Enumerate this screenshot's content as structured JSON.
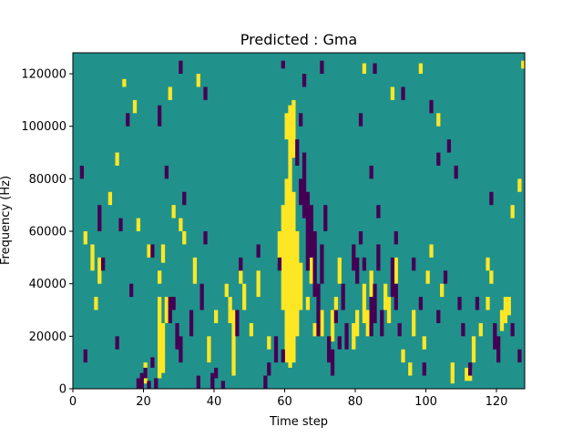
{
  "chart_data": {
    "type": "heatmap",
    "title": "Predicted : Gma",
    "xlabel": "Time step",
    "ylabel": "Frequency (Hz)",
    "xlim": [
      0,
      128
    ],
    "ylim": [
      0,
      128000
    ],
    "x_ticks": [
      0,
      20,
      40,
      60,
      80,
      100,
      120
    ],
    "y_ticks": [
      0,
      20000,
      40000,
      60000,
      80000,
      100000,
      120000
    ],
    "x_tick_labels": [
      "0",
      "20",
      "40",
      "60",
      "80",
      "100",
      "120"
    ],
    "y_tick_labels": [
      "0",
      "20000",
      "40000",
      "60000",
      "80000",
      "100000",
      "120000"
    ],
    "n_rows": 128,
    "n_cols": 128,
    "colormap": "viridis",
    "colors": {
      "low": "#440154",
      "mid": "#21918c",
      "high": "#fde725"
    },
    "background_value": 0,
    "value_levels": [
      -1,
      0,
      1
    ],
    "cells_high": [
      [
        60,
        10,
        80
      ],
      [
        61,
        8,
        85
      ],
      [
        62,
        10,
        75
      ],
      [
        59,
        30,
        70
      ],
      [
        63,
        20,
        60
      ],
      [
        58,
        48,
        60
      ],
      [
        64,
        30,
        48
      ],
      [
        61,
        85,
        108
      ],
      [
        62,
        88,
        110
      ],
      [
        60,
        95,
        105
      ],
      [
        24,
        4,
        35
      ],
      [
        25,
        6,
        25
      ],
      [
        26,
        25,
        35
      ],
      [
        24,
        40,
        45
      ],
      [
        25,
        48,
        55
      ],
      [
        20,
        2,
        10
      ],
      [
        45,
        5,
        30
      ],
      [
        44,
        25,
        35
      ],
      [
        43,
        35,
        40
      ],
      [
        73,
        18,
        30
      ],
      [
        74,
        25,
        35
      ],
      [
        70,
        20,
        30
      ],
      [
        75,
        40,
        50
      ],
      [
        79,
        15,
        25
      ],
      [
        80,
        20,
        30
      ],
      [
        82,
        25,
        40
      ],
      [
        83,
        20,
        30
      ],
      [
        84,
        35,
        45
      ],
      [
        107,
        2,
        10
      ],
      [
        111,
        3,
        8
      ],
      [
        112,
        3,
        8
      ],
      [
        122,
        25,
        35
      ],
      [
        123,
        28,
        35
      ],
      [
        121,
        22,
        30
      ],
      [
        7,
        40,
        50
      ],
      [
        5,
        45,
        55
      ],
      [
        6,
        30,
        35
      ],
      [
        3,
        55,
        60
      ],
      [
        48,
        30,
        40
      ],
      [
        47,
        40,
        45
      ],
      [
        52,
        35,
        45
      ],
      [
        30,
        60,
        65
      ],
      [
        31,
        55,
        60
      ],
      [
        34,
        40,
        50
      ],
      [
        88,
        30,
        40
      ],
      [
        89,
        25,
        35
      ],
      [
        91,
        40,
        50
      ],
      [
        96,
        20,
        30
      ],
      [
        100,
        40,
        45
      ],
      [
        101,
        50,
        55
      ],
      [
        104,
        35,
        40
      ],
      [
        117,
        30,
        35
      ],
      [
        118,
        40,
        45
      ],
      [
        14,
        115,
        118
      ],
      [
        17,
        105,
        110
      ],
      [
        27,
        110,
        115
      ],
      [
        35,
        115,
        120
      ],
      [
        82,
        120,
        124
      ],
      [
        90,
        110,
        115
      ],
      [
        98,
        120,
        124
      ],
      [
        103,
        100,
        105
      ],
      [
        117,
        45,
        50
      ],
      [
        124,
        65,
        70
      ],
      [
        126,
        75,
        80
      ],
      [
        127,
        122,
        125
      ],
      [
        10,
        70,
        75
      ],
      [
        12,
        85,
        90
      ],
      [
        18,
        60,
        65
      ],
      [
        21,
        50,
        55
      ],
      [
        28,
        65,
        70
      ],
      [
        38,
        10,
        20
      ],
      [
        40,
        25,
        30
      ],
      [
        50,
        20,
        25
      ],
      [
        55,
        15,
        20
      ],
      [
        66,
        30,
        35
      ],
      [
        67,
        40,
        50
      ],
      [
        68,
        20,
        25
      ],
      [
        93,
        10,
        15
      ],
      [
        95,
        5,
        10
      ],
      [
        99,
        15,
        20
      ],
      [
        113,
        10,
        20
      ],
      [
        115,
        20,
        25
      ]
    ],
    "cells_low": [
      [
        18,
        0,
        4
      ],
      [
        19,
        0,
        6
      ],
      [
        20,
        4,
        8
      ],
      [
        21,
        0,
        3
      ],
      [
        22,
        8,
        12
      ],
      [
        23,
        0,
        4
      ],
      [
        27,
        25,
        35
      ],
      [
        28,
        30,
        35
      ],
      [
        29,
        15,
        25
      ],
      [
        30,
        10,
        20
      ],
      [
        39,
        0,
        6
      ],
      [
        40,
        4,
        8
      ],
      [
        42,
        0,
        3
      ],
      [
        66,
        45,
        75
      ],
      [
        67,
        50,
        70
      ],
      [
        68,
        35,
        60
      ],
      [
        65,
        65,
        90
      ],
      [
        69,
        20,
        40
      ],
      [
        70,
        40,
        55
      ],
      [
        71,
        60,
        70
      ],
      [
        72,
        10,
        20
      ],
      [
        73,
        5,
        15
      ],
      [
        74,
        25,
        30
      ],
      [
        75,
        15,
        20
      ],
      [
        76,
        30,
        40
      ],
      [
        77,
        15,
        25
      ],
      [
        79,
        45,
        55
      ],
      [
        80,
        40,
        50
      ],
      [
        81,
        55,
        60
      ],
      [
        82,
        45,
        50
      ],
      [
        84,
        20,
        35
      ],
      [
        85,
        25,
        40
      ],
      [
        86,
        45,
        55
      ],
      [
        87,
        20,
        30
      ],
      [
        90,
        35,
        50
      ],
      [
        91,
        30,
        40
      ],
      [
        92,
        20,
        25
      ],
      [
        64,
        70,
        80
      ],
      [
        63,
        85,
        95
      ],
      [
        64,
        100,
        105
      ],
      [
        65,
        115,
        120
      ],
      [
        54,
        0,
        5
      ],
      [
        55,
        5,
        10
      ],
      [
        57,
        10,
        20
      ],
      [
        98,
        30,
        35
      ],
      [
        99,
        5,
        10
      ],
      [
        103,
        25,
        30
      ],
      [
        105,
        40,
        45
      ],
      [
        109,
        30,
        35
      ],
      [
        110,
        20,
        25
      ],
      [
        112,
        5,
        10
      ],
      [
        114,
        30,
        35
      ],
      [
        119,
        15,
        25
      ],
      [
        120,
        10,
        20
      ],
      [
        124,
        20,
        25
      ],
      [
        126,
        10,
        15
      ],
      [
        2,
        80,
        85
      ],
      [
        3,
        10,
        15
      ],
      [
        8,
        45,
        50
      ],
      [
        12,
        15,
        20
      ],
      [
        16,
        35,
        40
      ],
      [
        33,
        20,
        30
      ],
      [
        35,
        0,
        5
      ],
      [
        36,
        30,
        40
      ],
      [
        46,
        20,
        30
      ],
      [
        22,
        50,
        55
      ],
      [
        26,
        80,
        85
      ],
      [
        31,
        70,
        75
      ],
      [
        37,
        55,
        60
      ],
      [
        47,
        45,
        50
      ],
      [
        52,
        50,
        55
      ],
      [
        58,
        45,
        50
      ],
      [
        59,
        10,
        15
      ],
      [
        84,
        80,
        85
      ],
      [
        86,
        65,
        70
      ],
      [
        91,
        55,
        60
      ],
      [
        96,
        45,
        50
      ],
      [
        103,
        85,
        90
      ],
      [
        106,
        90,
        95
      ],
      [
        108,
        80,
        85
      ],
      [
        118,
        70,
        75
      ],
      [
        30,
        120,
        125
      ],
      [
        37,
        110,
        115
      ],
      [
        59,
        122,
        125
      ],
      [
        70,
        120,
        125
      ],
      [
        81,
        100,
        105
      ],
      [
        85,
        120,
        124
      ],
      [
        93,
        110,
        115
      ],
      [
        101,
        105,
        110
      ],
      [
        7,
        60,
        70
      ],
      [
        13,
        60,
        65
      ],
      [
        15,
        100,
        105
      ],
      [
        24,
        100,
        108
      ]
    ]
  }
}
